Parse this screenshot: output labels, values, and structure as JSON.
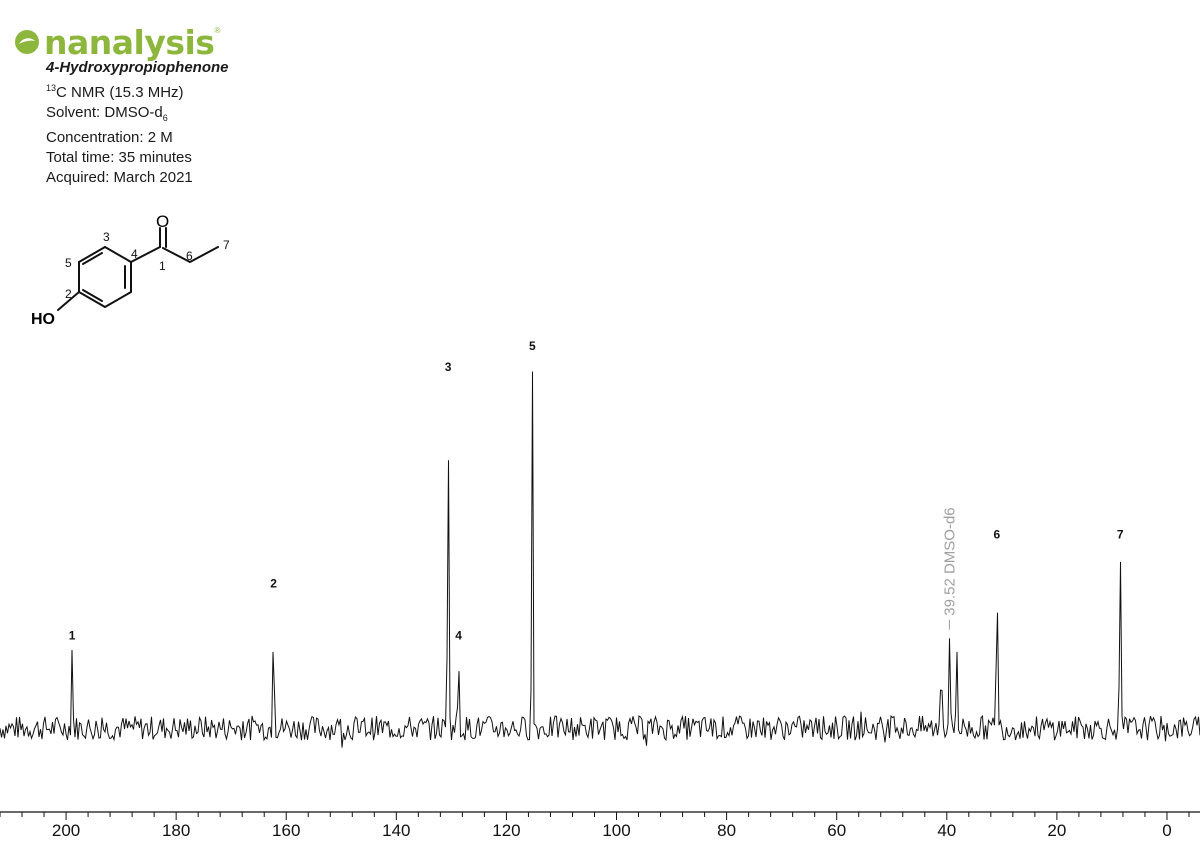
{
  "logo": {
    "text": "nanalysis",
    "tm": "®",
    "color": "#8cb63c"
  },
  "info": {
    "compound": "4-Hydroxypropiophenone",
    "nmr_sup": "13",
    "nmr": "C NMR (15.3 MHz)",
    "solvent_label": "Solvent: DMSO-d",
    "solvent_sub": "6",
    "concentration": "Concentration: 2 M",
    "total_time": "Total time: 35 minutes",
    "acquired": "Acquired: March 2021"
  },
  "structure": {
    "atoms": {
      "carbonyl_o": "O",
      "hydroxyl": "HO"
    },
    "labels": [
      "1",
      "2",
      "3",
      "4",
      "5",
      "6",
      "7"
    ]
  },
  "chart_data": {
    "type": "line",
    "title": "",
    "xlabel": "",
    "ylabel": "",
    "x_reversed": true,
    "xlim": [
      212,
      -6
    ],
    "ylim": [
      -0.15,
      1.1
    ],
    "x_ticks": [
      200,
      180,
      160,
      140,
      120,
      100,
      80,
      60,
      40,
      20,
      0
    ],
    "minor_tick_step": 4,
    "grid": false,
    "peaks": [
      {
        "label": "1",
        "ppm": 198.9,
        "height": 0.23
      },
      {
        "label": "2",
        "ppm": 162.3,
        "height": 0.38
      },
      {
        "label": "3",
        "ppm": 130.6,
        "height": 1.0
      },
      {
        "label": "4",
        "ppm": 128.7,
        "height": 0.23
      },
      {
        "label": "5",
        "ppm": 115.3,
        "height": 1.06
      },
      {
        "label": "6",
        "ppm": 30.9,
        "height": 0.52
      },
      {
        "label": "7",
        "ppm": 8.5,
        "height": 0.52
      }
    ],
    "solvent_peaks": [
      {
        "ppm": 41.0,
        "height": 0.26
      },
      {
        "ppm": 39.52,
        "height": 0.27
      },
      {
        "ppm": 38.2,
        "height": 0.25
      }
    ],
    "solvent_annotation": "39.52 DMSO-d6",
    "noise_amplitude": 0.035,
    "colors": {
      "trace": "#111111",
      "annotation": "#a0a0a0",
      "axis": "#111111"
    }
  }
}
